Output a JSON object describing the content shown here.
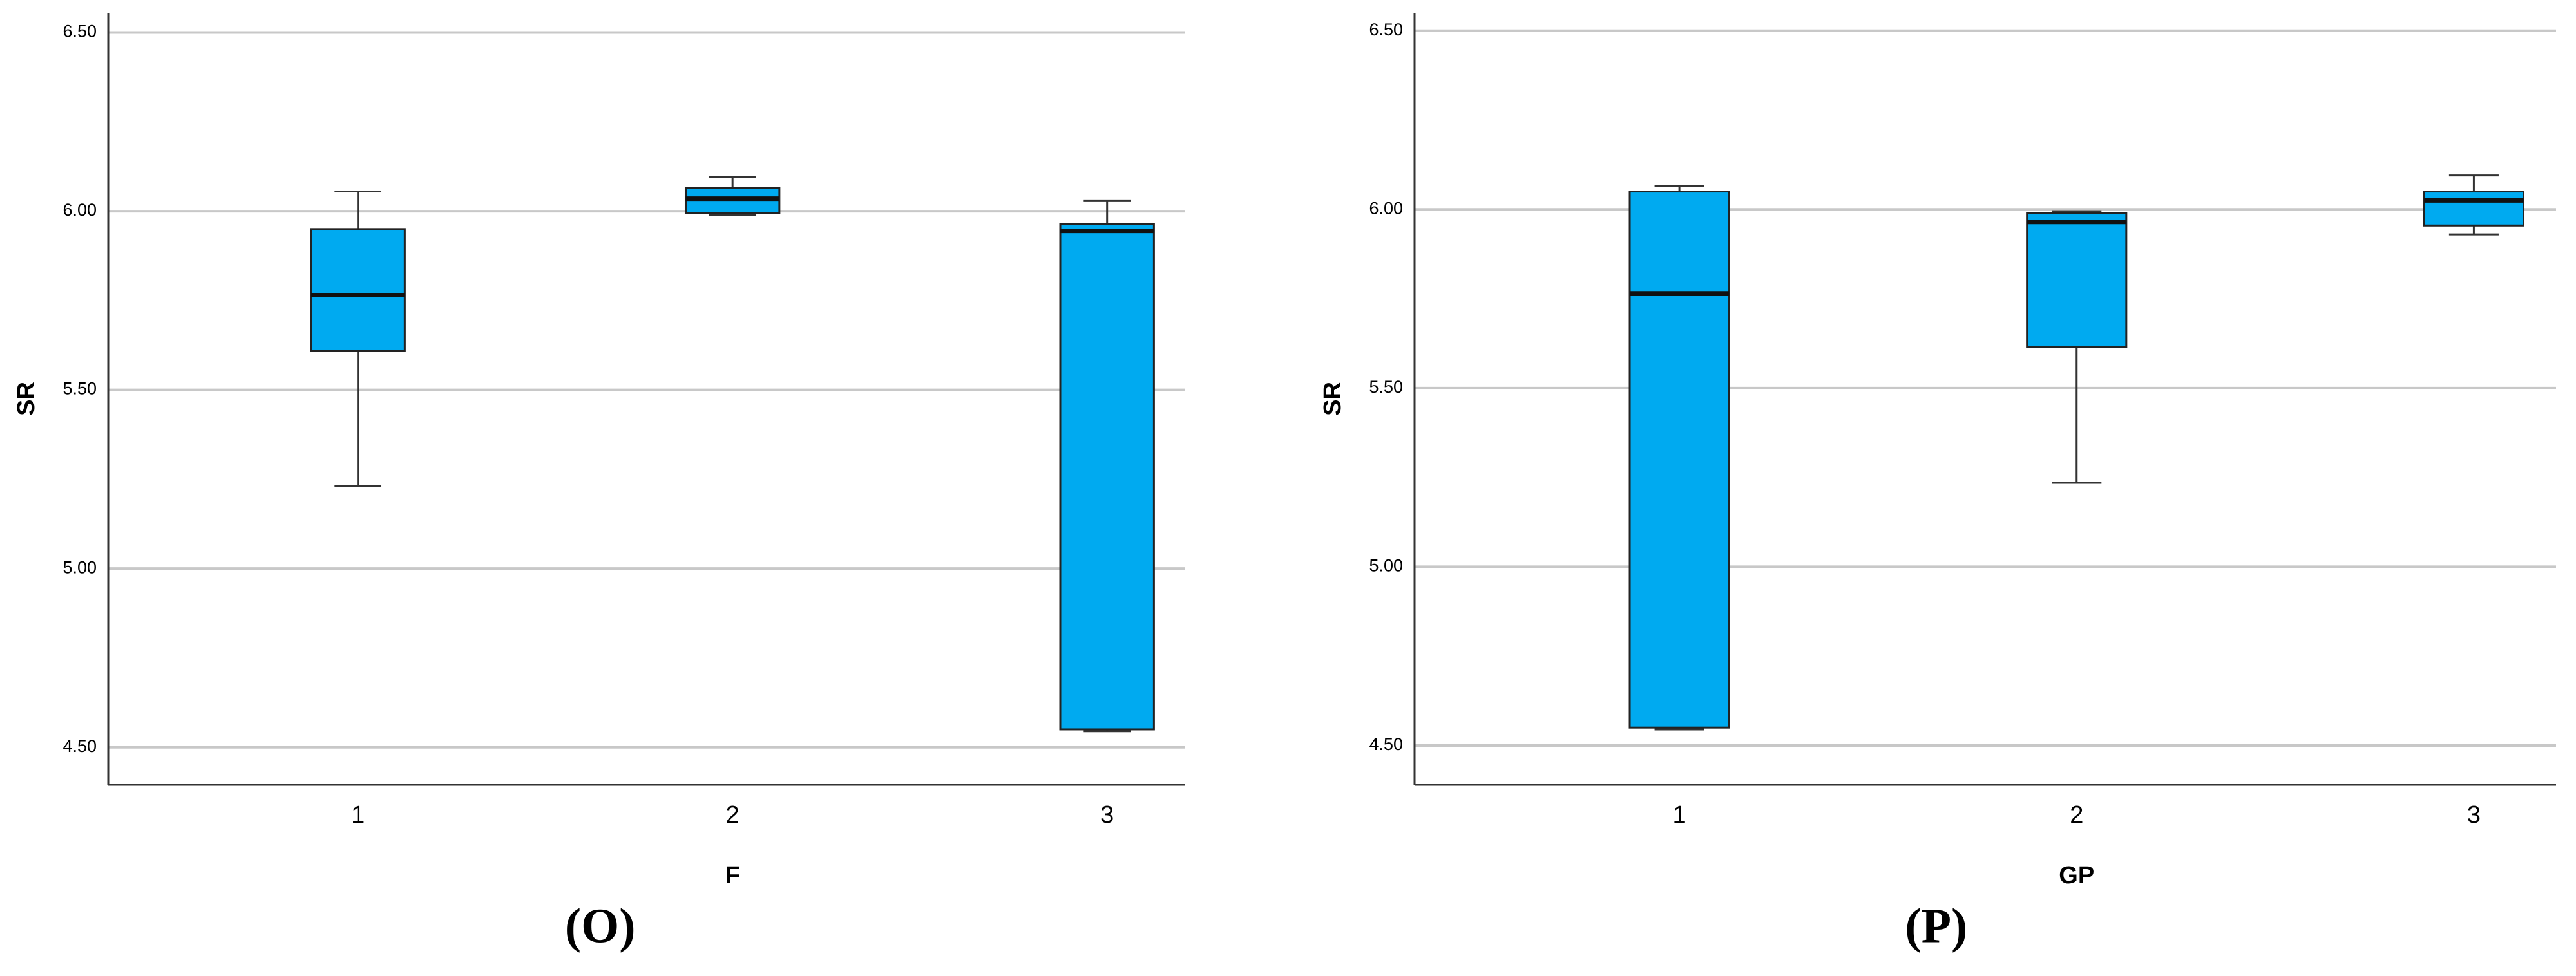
{
  "chart_data": [
    {
      "type": "box",
      "title": "(O)",
      "x_label": "F",
      "y_label": "SR",
      "color": "#00aaf0",
      "categories": [
        "1",
        "2",
        "3"
      ],
      "values": [
        {
          "min": 5.23,
          "q1": 5.61,
          "median": 5.765,
          "q3": 5.95,
          "max": 6.055
        },
        {
          "min": 5.99,
          "q1": 5.995,
          "median": 6.035,
          "q3": 6.065,
          "max": 6.095
        },
        {
          "min": 4.545,
          "q1": 4.55,
          "median": 5.945,
          "q3": 5.965,
          "max": 6.03
        }
      ],
      "ylim": [
        4.395,
        6.555
      ],
      "yticks": [
        {
          "value": 4.5,
          "label": "4.50"
        },
        {
          "value": 5,
          "label": "5.00"
        },
        {
          "value": 5.5,
          "label": "5.50"
        },
        {
          "value": 6,
          "label": "6.00"
        },
        {
          "value": 6.5,
          "label": "6.50"
        }
      ],
      "grid": true
    },
    {
      "type": "box",
      "title": "(P)",
      "x_label": "GP",
      "y_label": "SR",
      "color": "#00aaf0",
      "categories": [
        "1",
        "2",
        "3"
      ],
      "values": [
        {
          "min": 4.545,
          "q1": 4.55,
          "median": 5.765,
          "q3": 6.05,
          "max": 6.065
        },
        {
          "min": 5.235,
          "q1": 5.615,
          "median": 5.965,
          "q3": 5.99,
          "max": 5.995
        },
        {
          "min": 5.93,
          "q1": 5.955,
          "median": 6.025,
          "q3": 6.05,
          "max": 6.095
        }
      ],
      "ylim": [
        4.39,
        6.55
      ],
      "yticks": [
        {
          "value": 4.5,
          "label": "4.50"
        },
        {
          "value": 5,
          "label": "5.00"
        },
        {
          "value": 5.5,
          "label": "5.50"
        },
        {
          "value": 6,
          "label": "6.00"
        },
        {
          "value": 6.5,
          "label": "6.50"
        }
      ],
      "grid": true
    }
  ]
}
